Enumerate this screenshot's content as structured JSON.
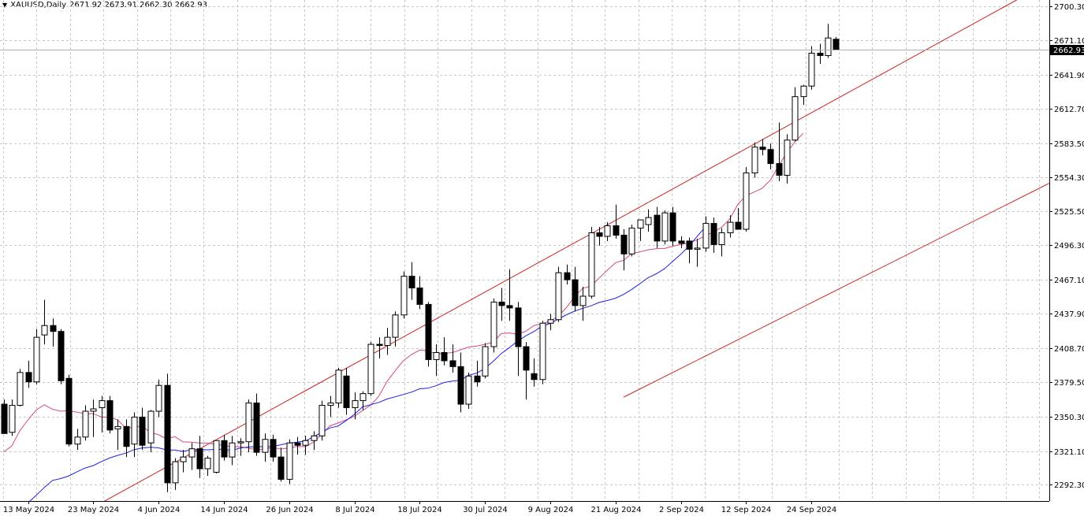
{
  "header": {
    "symbol_timeframe": "XAUUSD,Daily",
    "ohlc": "2671.92 2673.91 2662.30 2662.93"
  },
  "colors": {
    "background": "#ffffff",
    "grid": "#c8c8c8",
    "candle_outline": "#000000",
    "bull_body": "#ffffff",
    "bear_body": "#000000",
    "channel": "#cc2222",
    "ma_fast": "#d4488a",
    "ma_slow": "#2020e0",
    "price_label_bg": "#000000",
    "price_label_fg": "#ffffff"
  },
  "chart_data": {
    "type": "candlestick",
    "symbol": "XAUUSD",
    "timeframe": "Daily",
    "grid": true,
    "last_price": 2662.93,
    "y_axis": {
      "ylim": [
        2277.3,
        2706.5
      ],
      "ticks": [
        2700.3,
        2671.1,
        2641.9,
        2612.7,
        2583.5,
        2554.3,
        2525.5,
        2496.3,
        2467.1,
        2437.9,
        2408.7,
        2379.5,
        2350.3,
        2321.1,
        2292.3
      ],
      "tick_labels": [
        "2700.30",
        "2671.10",
        "2641.90",
        "2612.70",
        "2583.50",
        "2554.30",
        "2525.50",
        "2496.30",
        "2467.10",
        "2437.90",
        "2408.70",
        "2379.50",
        "2350.30",
        "2321.10",
        "2292.30"
      ]
    },
    "x_axis": {
      "labels": [
        {
          "label": "13 May 2024",
          "bar": 3
        },
        {
          "label": "23 May 2024",
          "bar": 11
        },
        {
          "label": "4 Jun 2024",
          "bar": 19
        },
        {
          "label": "14 Jun 2024",
          "bar": 27
        },
        {
          "label": "26 Jun 2024",
          "bar": 35
        },
        {
          "label": "8 Jul 2024",
          "bar": 43
        },
        {
          "label": "18 Jul 2024",
          "bar": 51
        },
        {
          "label": "30 Jul 2024",
          "bar": 59
        },
        {
          "label": "9 Aug 2024",
          "bar": 67
        },
        {
          "label": "21 Aug 2024",
          "bar": 75
        },
        {
          "label": "2 Sep 2024",
          "bar": 83
        },
        {
          "label": "12 Sep 2024",
          "bar": 91
        },
        {
          "label": "24 Sep 2024",
          "bar": 99
        }
      ]
    },
    "candles": [
      {
        "o": 2361,
        "h": 2365,
        "l": 2340,
        "c": 2336
      },
      {
        "o": 2337,
        "h": 2365,
        "l": 2334,
        "c": 2360
      },
      {
        "o": 2360,
        "h": 2391,
        "l": 2359,
        "c": 2388
      },
      {
        "o": 2388,
        "h": 2398,
        "l": 2375,
        "c": 2380
      },
      {
        "o": 2380,
        "h": 2425,
        "l": 2378,
        "c": 2418
      },
      {
        "o": 2420,
        "h": 2450,
        "l": 2412,
        "c": 2428
      },
      {
        "o": 2428,
        "h": 2434,
        "l": 2410,
        "c": 2423
      },
      {
        "o": 2423,
        "h": 2425,
        "l": 2378,
        "c": 2381
      },
      {
        "o": 2383,
        "h": 2386,
        "l": 2325,
        "c": 2327
      },
      {
        "o": 2327,
        "h": 2340,
        "l": 2322,
        "c": 2333
      },
      {
        "o": 2333,
        "h": 2360,
        "l": 2330,
        "c": 2355
      },
      {
        "o": 2355,
        "h": 2365,
        "l": 2333,
        "c": 2357
      },
      {
        "o": 2358,
        "h": 2368,
        "l": 2337,
        "c": 2364
      },
      {
        "o": 2364,
        "h": 2368,
        "l": 2336,
        "c": 2339
      },
      {
        "o": 2340,
        "h": 2348,
        "l": 2322,
        "c": 2342
      },
      {
        "o": 2342,
        "h": 2348,
        "l": 2316,
        "c": 2325
      },
      {
        "o": 2327,
        "h": 2354,
        "l": 2316,
        "c": 2350
      },
      {
        "o": 2350,
        "h": 2358,
        "l": 2322,
        "c": 2326
      },
      {
        "o": 2328,
        "h": 2356,
        "l": 2320,
        "c": 2355
      },
      {
        "o": 2355,
        "h": 2382,
        "l": 2350,
        "c": 2377
      },
      {
        "o": 2377,
        "h": 2387,
        "l": 2286,
        "c": 2294
      },
      {
        "o": 2294,
        "h": 2315,
        "l": 2288,
        "c": 2312
      },
      {
        "o": 2312,
        "h": 2322,
        "l": 2303,
        "c": 2316
      },
      {
        "o": 2316,
        "h": 2328,
        "l": 2305,
        "c": 2323
      },
      {
        "o": 2323,
        "h": 2334,
        "l": 2298,
        "c": 2306
      },
      {
        "o": 2306,
        "h": 2317,
        "l": 2300,
        "c": 2315
      },
      {
        "o": 2303,
        "h": 2330,
        "l": 2302,
        "c": 2330
      },
      {
        "o": 2330,
        "h": 2335,
        "l": 2313,
        "c": 2316
      },
      {
        "o": 2316,
        "h": 2334,
        "l": 2309,
        "c": 2328
      },
      {
        "o": 2328,
        "h": 2332,
        "l": 2317,
        "c": 2329
      },
      {
        "o": 2329,
        "h": 2365,
        "l": 2320,
        "c": 2362
      },
      {
        "o": 2362,
        "h": 2370,
        "l": 2317,
        "c": 2320
      },
      {
        "o": 2320,
        "h": 2336,
        "l": 2312,
        "c": 2331
      },
      {
        "o": 2331,
        "h": 2335,
        "l": 2312,
        "c": 2316
      },
      {
        "o": 2316,
        "h": 2324,
        "l": 2295,
        "c": 2297
      },
      {
        "o": 2297,
        "h": 2331,
        "l": 2293,
        "c": 2328
      },
      {
        "o": 2328,
        "h": 2333,
        "l": 2318,
        "c": 2326
      },
      {
        "o": 2326,
        "h": 2334,
        "l": 2318,
        "c": 2330
      },
      {
        "o": 2330,
        "h": 2338,
        "l": 2322,
        "c": 2334
      },
      {
        "o": 2334,
        "h": 2364,
        "l": 2330,
        "c": 2360
      },
      {
        "o": 2360,
        "h": 2368,
        "l": 2350,
        "c": 2362
      },
      {
        "o": 2362,
        "h": 2392,
        "l": 2358,
        "c": 2390
      },
      {
        "o": 2385,
        "h": 2392,
        "l": 2352,
        "c": 2358
      },
      {
        "o": 2358,
        "h": 2371,
        "l": 2348,
        "c": 2364
      },
      {
        "o": 2364,
        "h": 2372,
        "l": 2356,
        "c": 2370
      },
      {
        "o": 2370,
        "h": 2414,
        "l": 2368,
        "c": 2412
      },
      {
        "o": 2412,
        "h": 2418,
        "l": 2400,
        "c": 2411
      },
      {
        "o": 2411,
        "h": 2426,
        "l": 2403,
        "c": 2418
      },
      {
        "o": 2418,
        "h": 2440,
        "l": 2410,
        "c": 2437
      },
      {
        "o": 2437,
        "h": 2474,
        "l": 2434,
        "c": 2470
      },
      {
        "o": 2470,
        "h": 2482,
        "l": 2450,
        "c": 2460
      },
      {
        "o": 2460,
        "h": 2470,
        "l": 2442,
        "c": 2446
      },
      {
        "o": 2446,
        "h": 2448,
        "l": 2393,
        "c": 2399
      },
      {
        "o": 2399,
        "h": 2412,
        "l": 2385,
        "c": 2405
      },
      {
        "o": 2405,
        "h": 2418,
        "l": 2394,
        "c": 2398
      },
      {
        "o": 2398,
        "h": 2412,
        "l": 2388,
        "c": 2393
      },
      {
        "o": 2393,
        "h": 2405,
        "l": 2354,
        "c": 2361
      },
      {
        "o": 2361,
        "h": 2388,
        "l": 2357,
        "c": 2385
      },
      {
        "o": 2385,
        "h": 2398,
        "l": 2376,
        "c": 2380
      },
      {
        "o": 2385,
        "h": 2413,
        "l": 2383,
        "c": 2410
      },
      {
        "o": 2410,
        "h": 2451,
        "l": 2405,
        "c": 2448
      },
      {
        "o": 2448,
        "h": 2460,
        "l": 2432,
        "c": 2445
      },
      {
        "o": 2445,
        "h": 2476,
        "l": 2432,
        "c": 2443
      },
      {
        "o": 2443,
        "h": 2448,
        "l": 2385,
        "c": 2410
      },
      {
        "o": 2410,
        "h": 2414,
        "l": 2365,
        "c": 2390
      },
      {
        "o": 2387,
        "h": 2400,
        "l": 2376,
        "c": 2382
      },
      {
        "o": 2382,
        "h": 2432,
        "l": 2378,
        "c": 2430
      },
      {
        "o": 2430,
        "h": 2438,
        "l": 2424,
        "c": 2433
      },
      {
        "o": 2433,
        "h": 2478,
        "l": 2431,
        "c": 2473
      },
      {
        "o": 2473,
        "h": 2480,
        "l": 2463,
        "c": 2467
      },
      {
        "o": 2467,
        "h": 2478,
        "l": 2440,
        "c": 2445
      },
      {
        "o": 2445,
        "h": 2461,
        "l": 2432,
        "c": 2453
      },
      {
        "o": 2453,
        "h": 2512,
        "l": 2451,
        "c": 2507
      },
      {
        "o": 2507,
        "h": 2512,
        "l": 2496,
        "c": 2504
      },
      {
        "o": 2504,
        "h": 2516,
        "l": 2500,
        "c": 2513
      },
      {
        "o": 2513,
        "h": 2531,
        "l": 2502,
        "c": 2505
      },
      {
        "o": 2505,
        "h": 2510,
        "l": 2475,
        "c": 2489
      },
      {
        "o": 2489,
        "h": 2514,
        "l": 2487,
        "c": 2511
      },
      {
        "o": 2511,
        "h": 2516,
        "l": 2500,
        "c": 2518
      },
      {
        "o": 2514,
        "h": 2527,
        "l": 2508,
        "c": 2520
      },
      {
        "o": 2522,
        "h": 2529,
        "l": 2494,
        "c": 2500
      },
      {
        "o": 2500,
        "h": 2526,
        "l": 2497,
        "c": 2524
      },
      {
        "o": 2524,
        "h": 2529,
        "l": 2496,
        "c": 2500
      },
      {
        "o": 2500,
        "h": 2504,
        "l": 2494,
        "c": 2498
      },
      {
        "o": 2500,
        "h": 2503,
        "l": 2481,
        "c": 2493
      },
      {
        "o": 2493,
        "h": 2502,
        "l": 2478,
        "c": 2494
      },
      {
        "o": 2494,
        "h": 2521,
        "l": 2491,
        "c": 2515
      },
      {
        "o": 2515,
        "h": 2520,
        "l": 2490,
        "c": 2497
      },
      {
        "o": 2497,
        "h": 2511,
        "l": 2487,
        "c": 2507
      },
      {
        "o": 2507,
        "h": 2522,
        "l": 2503,
        "c": 2516
      },
      {
        "o": 2516,
        "h": 2528,
        "l": 2510,
        "c": 2510
      },
      {
        "o": 2510,
        "h": 2563,
        "l": 2508,
        "c": 2558
      },
      {
        "o": 2558,
        "h": 2584,
        "l": 2554,
        "c": 2580
      },
      {
        "o": 2580,
        "h": 2587,
        "l": 2573,
        "c": 2578
      },
      {
        "o": 2578,
        "h": 2583,
        "l": 2561,
        "c": 2566
      },
      {
        "o": 2566,
        "h": 2601,
        "l": 2551,
        "c": 2556
      },
      {
        "o": 2556,
        "h": 2591,
        "l": 2549,
        "c": 2586
      },
      {
        "o": 2586,
        "h": 2631,
        "l": 2585,
        "c": 2623
      },
      {
        "o": 2623,
        "h": 2633,
        "l": 2616,
        "c": 2632
      },
      {
        "o": 2632,
        "h": 2666,
        "l": 2629,
        "c": 2660
      },
      {
        "o": 2660,
        "h": 2668,
        "l": 2651,
        "c": 2658
      },
      {
        "o": 2658,
        "h": 2685,
        "l": 2656,
        "c": 2673
      },
      {
        "o": 2671.92,
        "h": 2673.91,
        "l": 2662.3,
        "c": 2662.93
      }
    ],
    "ma_fast": {
      "start_bar": 0,
      "values": [
        2320.3,
        2325.3,
        2338.4,
        2347.6,
        2356.0,
        2360.5,
        2356.7,
        2355.0,
        2355.5,
        2354.1,
        2352.9,
        2352.9,
        2350.0,
        2349.9,
        2347.5,
        2340.5,
        2341.3,
        2342.4,
        2336.9,
        2334.9,
        2331.4,
        2333.3,
        2328.9,
        2328.6,
        2327.9,
        2327.8,
        2326.8,
        2325.8,
        2324.7,
        2324.8,
        2323.5,
        2322.1,
        2322.8,
        2324.0,
        2322.8,
        2323.8,
        2324.9,
        2324.8,
        2328.7,
        2335.4,
        2342.5,
        2344.9,
        2347.7,
        2350.8,
        2355.6,
        2360.2,
        2367.9,
        2380.3,
        2389.5,
        2398.1,
        2403.3,
        2407.1,
        2406.5,
        2403.7,
        2404.3,
        2405.0,
        2407.3,
        2409.7,
        2410.5,
        2412.0,
        2413.8,
        2421.2,
        2421.7,
        2420.6,
        2423.1,
        2428.0,
        2429.5,
        2431.6,
        2436.2,
        2443.3,
        2452.8,
        2459.8,
        2461.5,
        2468.5,
        2475.1,
        2481.6,
        2483.5,
        2489.5,
        2490.8,
        2492.5,
        2493.5,
        2493.6,
        2495.6,
        2497.0,
        2498.5,
        2500.9,
        2504.5,
        2507.7,
        2511.7,
        2518.7,
        2531.4,
        2538.6,
        2541.8,
        2545.0,
        2552.1,
        2564.2,
        2575.3,
        2584.5,
        2591.8
      ]
    },
    "ma_slow": {
      "start_bar": 3,
      "values": [
        2277.0,
        2283.3,
        2290.1,
        2296.1,
        2297.6,
        2299.9,
        2303.4,
        2306.6,
        2308.7,
        2312.1,
        2315.1,
        2317.4,
        2319.3,
        2322.3,
        2323.7,
        2324.3,
        2323.8,
        2322.0,
        2322.0,
        2320.8,
        2322.2,
        2322.4,
        2322.1,
        2322.5,
        2322.5,
        2321.7,
        2323.6,
        2324.5,
        2324.8,
        2324.8,
        2325.0,
        2326.5,
        2327.9,
        2328.7,
        2329.6,
        2333.3,
        2337.1,
        2340.8,
        2342.4,
        2347.1,
        2352.4,
        2358.7,
        2360.6,
        2362.5,
        2365.4,
        2367.3,
        2369.2,
        2371.3,
        2374.1,
        2374.6,
        2376.7,
        2379.5,
        2380.7,
        2381.3,
        2385.7,
        2387.5,
        2391.5,
        2397.5,
        2404.2,
        2409.2,
        2414.7,
        2419.2,
        2422.9,
        2427.4,
        2429.8,
        2433.6,
        2437.2,
        2440.3,
        2442.7,
        2444.8,
        2447.7,
        2449.3,
        2451.3,
        2454.5,
        2458.8,
        2463.7,
        2468.7,
        2472.1,
        2476.4,
        2482.6,
        2488.7,
        2495.6,
        2503.9,
        2511.9
      ]
    },
    "channel_lines": [
      {
        "from": {
          "bar": 12,
          "price": 2277
        },
        "to": {
          "bar": 128,
          "price": 2720
        }
      },
      {
        "from": {
          "bar": 76,
          "price": 2367
        },
        "to": {
          "bar": 155,
          "price": 2643
        }
      }
    ]
  }
}
